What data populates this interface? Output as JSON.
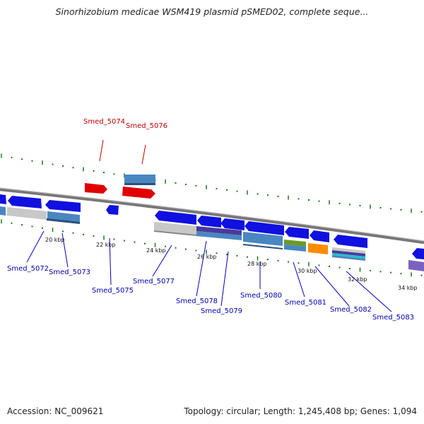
{
  "title": "Sinorhizobium medicae WSM419 plasmid pSMED02, complete seque...",
  "accession": "Accession: NC_009621",
  "topology": "Topology: circular; Length: 1,245,408 bp; Genes: 1,094",
  "scale_labels": [
    "20 kbp",
    "22 kbp",
    "24 kbp",
    "26 kbp",
    "28 kbp",
    "30 kbp",
    "32 kbp",
    "34 kbp"
  ],
  "upper_labels": [
    "Smed_5074",
    "Smed_5076"
  ],
  "lower_labels": [
    "Smed_5072",
    "Smed_5073",
    "Smed_5075",
    "Smed_5077",
    "Smed_5078",
    "Smed_5079",
    "Smed_5080",
    "Smed_5081",
    "Smed_5082",
    "Smed_5083"
  ],
  "colors": {
    "forward_gene": "#e00000",
    "reverse_gene": "#1010e0",
    "upper_label": "#c00000",
    "lower_label": "#0000b0",
    "leader_line": "#0000c0",
    "tick": "#1a7a1a",
    "backbone": "#888888"
  }
}
